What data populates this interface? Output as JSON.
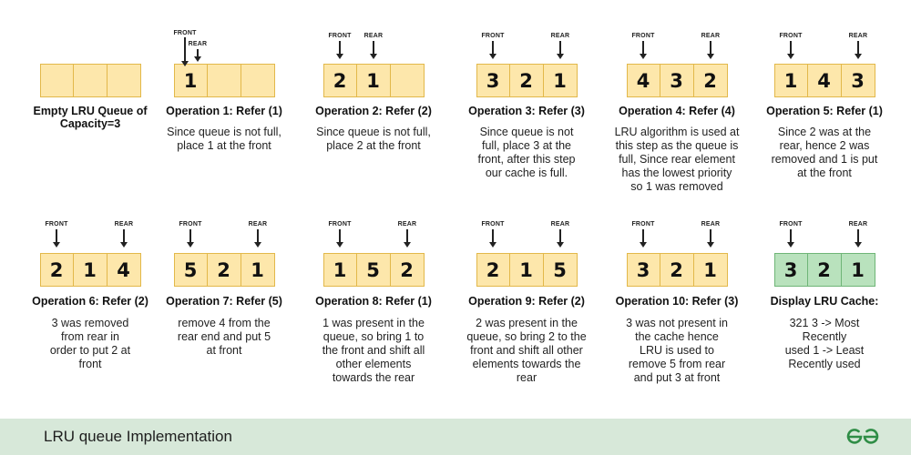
{
  "footer": {
    "title": "LRU queue Implementation",
    "logo_icon": "gfg-logo-icon"
  },
  "colors": {
    "cell_fill": "#fde7ab",
    "cell_border": "#e2b84a",
    "final_fill": "#b9e2bd",
    "final_border": "#6fb577",
    "footer_bg": "#d7e8d9",
    "logo": "#2f8d46"
  },
  "pointer_labels": {
    "front": "FRONT",
    "rear": "REAR"
  },
  "steps": [
    {
      "title": "Empty LRU Queue of\nCapacity=3",
      "cells": [
        "",
        "",
        ""
      ],
      "front": null,
      "rear": null,
      "desc": ""
    },
    {
      "title": "Operation 1: Refer (1)",
      "cells": [
        "1",
        "",
        ""
      ],
      "front": 0,
      "rear": 0,
      "desc": "Since queue is not full,\nplace 1 at the front"
    },
    {
      "title": "Operation 2: Refer (2)",
      "cells": [
        "2",
        "1",
        ""
      ],
      "front": 0,
      "rear": 1,
      "desc": "Since queue is not full,\nplace 2 at the front"
    },
    {
      "title": "Operation 3: Refer (3)",
      "cells": [
        "3",
        "2",
        "1"
      ],
      "front": 0,
      "rear": 2,
      "desc": "Since queue is not\nfull, place 3 at the\nfront, after this step\nour cache is full."
    },
    {
      "title": "Operation 4: Refer (4)",
      "cells": [
        "4",
        "3",
        "2"
      ],
      "front": 0,
      "rear": 2,
      "desc": "LRU algorithm is used at\nthis step as the queue is\nfull, Since rear element\nhas the lowest priority\nso 1 was removed"
    },
    {
      "title": "Operation 5: Refer (1)",
      "cells": [
        "1",
        "4",
        "3"
      ],
      "front": 0,
      "rear": 2,
      "desc": "Since 2 was at the\nrear, hence 2 was\nremoved and 1 is put\nat the front"
    },
    {
      "title": "Operation 6: Refer (2)",
      "cells": [
        "2",
        "1",
        "4"
      ],
      "front": 0,
      "rear": 2,
      "desc": "3 was removed\nfrom rear in\norder to put 2 at\nfront"
    },
    {
      "title": "Operation 7: Refer (5)",
      "cells": [
        "5",
        "2",
        "1"
      ],
      "front": 0,
      "rear": 2,
      "desc": "remove 4 from the\nrear end and put 5\nat front"
    },
    {
      "title": "Operation 8: Refer (1)",
      "cells": [
        "1",
        "5",
        "2"
      ],
      "front": 0,
      "rear": 2,
      "desc": "1 was present in the\nqueue, so bring 1 to\nthe front and shift all\nother elements\ntowards the rear"
    },
    {
      "title": "Operation 9: Refer (2)",
      "cells": [
        "2",
        "1",
        "5"
      ],
      "front": 0,
      "rear": 2,
      "desc": "2 was present in the\nqueue, so bring 2 to the\nfront and shift all other\nelements towards the\nrear"
    },
    {
      "title": "Operation 10: Refer (3)",
      "cells": [
        "3",
        "2",
        "1"
      ],
      "front": 0,
      "rear": 2,
      "desc": "3 was not present in\nthe cache hence\nLRU is used to\nremove 5 from rear\nand put 3 at front"
    },
    {
      "title": "Display LRU Cache:",
      "cells": [
        "3",
        "2",
        "1"
      ],
      "front": 0,
      "rear": 2,
      "final": true,
      "desc": "321 3 -> Most\nRecently\nused 1 -> Least\nRecently used"
    }
  ]
}
